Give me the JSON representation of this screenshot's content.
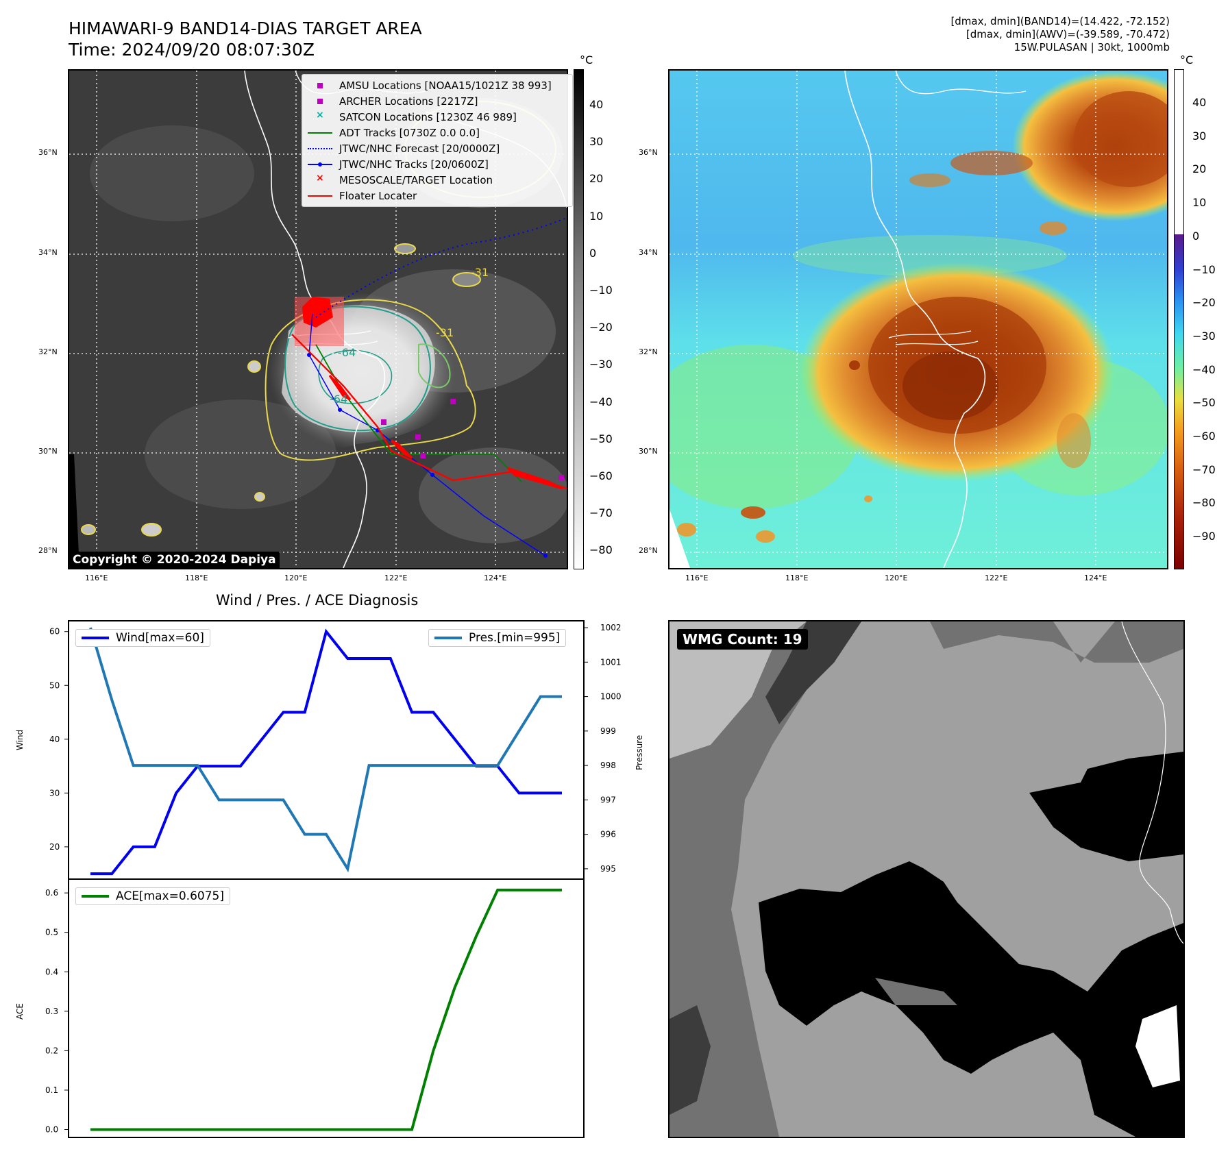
{
  "header": {
    "title": "HIMAWARI-9 BAND14-DIAS TARGET AREA",
    "time": "Time: 2024/09/20 08:07:30Z",
    "stats_line1": "[dmax, dmin](BAND14)=(14.422, -72.152)",
    "stats_line2": "[dmax, dmin](AWV)=(-39.589, -70.472)",
    "stats_line3": "15W.PULASAN | 30kt, 1000mb"
  },
  "map": {
    "lat_labels": [
      "36°N",
      "34°N",
      "32°N",
      "30°N",
      "28°N"
    ],
    "lon_labels": [
      "116°E",
      "118°E",
      "120°E",
      "122°E",
      "124°E"
    ],
    "contour_labels": [
      "-64",
      "-64",
      "-31",
      "-31"
    ],
    "copyright": "Copyright © 2020-2024 Dapiya"
  },
  "legend": {
    "items": [
      {
        "label": "AMSU Locations [NOAA15/1021Z 38 993]",
        "color": "#c000c0"
      },
      {
        "label": "ARCHER Locations [2217Z]",
        "color": "#c000c0"
      },
      {
        "label": "SATCON Locations [1230Z 46 989]",
        "color": "#00b0a0"
      },
      {
        "label": "ADT Tracks [0730Z 0.0 0.0]",
        "color": "#008000"
      },
      {
        "label": "JTWC/NHC Forecast [20/0000Z]",
        "color": "#0000ff"
      },
      {
        "label": "JTWC/NHC Tracks [20/0600Z]",
        "color": "#0000ff"
      },
      {
        "label": "MESOSCALE/TARGET Location",
        "color": "#ff0000"
      },
      {
        "label": "Floater Locater",
        "color": "#ff0000"
      }
    ]
  },
  "colorbar_left": {
    "unit": "°C",
    "ticks": [
      "40",
      "30",
      "20",
      "10",
      "0",
      "−10",
      "−20",
      "−30",
      "−40",
      "−50",
      "−60",
      "−70",
      "−80"
    ]
  },
  "colorbar_right": {
    "unit": "°C",
    "ticks": [
      "40",
      "30",
      "20",
      "10",
      "0",
      "−10",
      "−20",
      "−30",
      "−40",
      "−50",
      "−60",
      "−70",
      "−80",
      "−90"
    ]
  },
  "wmg": {
    "label": "WMG Count: 19"
  },
  "colors": {
    "wind": "#0000ee",
    "pressure": "#1f77b4",
    "ace": "#008000",
    "track": "#ff0000"
  },
  "chart_data": [
    {
      "type": "line",
      "title": "Wind / Pres. / ACE Diagnosis",
      "ylabel": "Wind",
      "ylabel_right": "Pressure",
      "ylim": [
        14,
        62
      ],
      "ylim_right": [
        994.7,
        1002.2
      ],
      "yticks": [
        20,
        30,
        40,
        50,
        60
      ],
      "yticks_right": [
        995,
        996,
        997,
        998,
        999,
        1000,
        1001,
        1002
      ],
      "series": [
        {
          "name": "Wind[max=60]",
          "axis": "left",
          "values": [
            15,
            15,
            20,
            20,
            30,
            35,
            35,
            35,
            40,
            45,
            45,
            60,
            55,
            55,
            55,
            45,
            45,
            40,
            35,
            35,
            30,
            30,
            30
          ]
        },
        {
          "name": "Pres.[min=995]",
          "axis": "right",
          "values": [
            1002,
            999.9,
            998,
            998,
            998,
            998,
            997,
            997,
            997,
            997,
            996,
            996,
            995,
            998,
            998,
            998,
            998,
            998,
            998,
            998,
            999,
            1000,
            1000
          ]
        }
      ]
    },
    {
      "type": "line",
      "ylabel": "ACE",
      "ylim": [
        -0.02,
        0.635
      ],
      "yticks": [
        "0.0",
        "0.1",
        "0.2",
        "0.3",
        "0.4",
        "0.5",
        "0.6"
      ],
      "series": [
        {
          "name": "ACE[max=0.6075]",
          "values": [
            0,
            0,
            0,
            0,
            0,
            0,
            0,
            0,
            0,
            0,
            0,
            0,
            0,
            0,
            0,
            0,
            0.2,
            0.36,
            0.49,
            0.6075,
            0.6075,
            0.6075,
            0.6075
          ]
        }
      ]
    }
  ]
}
